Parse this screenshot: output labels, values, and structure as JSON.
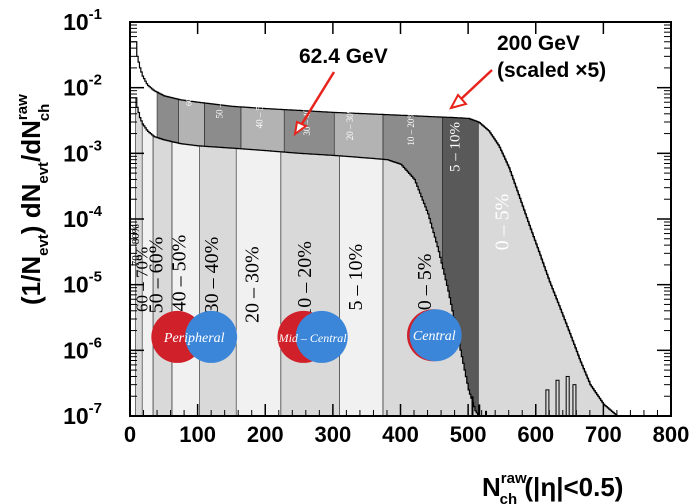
{
  "chart_data": {
    "type": "area",
    "xlabel": {
      "main": "N",
      "sup": "raw",
      "sub": "ch",
      "tail": " (|η|<0.5)"
    },
    "ylabel": {
      "pre": "(1/N",
      "sub1": "evt",
      "mid": ") dN",
      "sub2": "evt",
      "mid2": "/dN",
      "sup3": "raw",
      "sub3": "ch"
    },
    "x_ticks": [
      "0",
      "100",
      "200",
      "300",
      "400",
      "500",
      "600",
      "700",
      "800"
    ],
    "xlim": [
      0,
      800
    ],
    "ylim": [
      1e-07,
      0.1
    ],
    "y_scale": "log",
    "y_ticks": [
      {
        "value": 1e-07,
        "base": "10",
        "exp": "-7"
      },
      {
        "value": 1e-06,
        "base": "10",
        "exp": "-6"
      },
      {
        "value": 1e-05,
        "base": "10",
        "exp": "-5"
      },
      {
        "value": 0.0001,
        "base": "10",
        "exp": "-4"
      },
      {
        "value": 0.001,
        "base": "10",
        "exp": "-3"
      },
      {
        "value": 0.01,
        "base": "10",
        "exp": "-2"
      },
      {
        "value": 0.1,
        "base": "10",
        "exp": "-1"
      }
    ],
    "series": [
      {
        "name": "200 GeV (scaled ×5)",
        "x": [
          0,
          8,
          10,
          14,
          18,
          25,
          35,
          50,
          75,
          100,
          150,
          200,
          250,
          300,
          350,
          400,
          450,
          480,
          500,
          515,
          530,
          545,
          560,
          575,
          590,
          605,
          620,
          635,
          650,
          665,
          680,
          700,
          720
        ],
        "y": [
          0.05,
          0.05,
          0.03,
          0.02,
          0.015,
          0.011,
          0.009,
          0.0075,
          0.0065,
          0.006,
          0.0052,
          0.0048,
          0.0045,
          0.0042,
          0.004,
          0.0038,
          0.0036,
          0.0035,
          0.0034,
          0.003,
          0.0022,
          0.0013,
          0.0006,
          0.00022,
          8e-05,
          3e-05,
          1.1e-05,
          4.5e-06,
          1.8e-06,
          7e-07,
          3e-07,
          1.5e-07,
          1e-07
        ],
        "centrality_classes": [
          {
            "label": "0 – 5%",
            "from": 515,
            "to": 720
          },
          {
            "label": "5 – 10%",
            "from": 462,
            "to": 515
          },
          {
            "label": "10 – 20%",
            "from": 374,
            "to": 462
          },
          {
            "label": "20 – 30%",
            "from": 302,
            "to": 374
          },
          {
            "label": "30 – 40%",
            "from": 228,
            "to": 302
          },
          {
            "label": "40 – 50%",
            "from": 164,
            "to": 228
          },
          {
            "label": "50 – 60%",
            "from": 110,
            "to": 164
          },
          {
            "label": "60 – 70%",
            "from": 72,
            "to": 110
          },
          {
            "label": "70 – 80%",
            "from": 40,
            "to": 72
          }
        ]
      },
      {
        "name": "62.4 GeV",
        "x": [
          0,
          8,
          10,
          14,
          18,
          25,
          35,
          50,
          75,
          100,
          150,
          200,
          250,
          300,
          350,
          380,
          400,
          420,
          440,
          455,
          470,
          480,
          490,
          500,
          510,
          515
        ],
        "y": [
          0.007,
          0.007,
          0.005,
          0.0035,
          0.0028,
          0.0022,
          0.0018,
          0.0016,
          0.0014,
          0.0013,
          0.0012,
          0.0011,
          0.001,
          0.00093,
          0.00085,
          0.0008,
          0.00068,
          0.0004,
          0.00012,
          3.5e-05,
          8e-06,
          2.5e-06,
          8e-07,
          2.5e-07,
          1.2e-07,
          1e-07
        ],
        "centrality_classes": [
          {
            "label": "0 – 5%",
            "from": 374,
            "to": 515
          },
          {
            "label": "5 – 10%",
            "from": 310,
            "to": 374
          },
          {
            "label": "10 – 20%",
            "from": 223,
            "to": 310
          },
          {
            "label": "20 – 30%",
            "from": 157,
            "to": 223
          },
          {
            "label": "30 – 40%",
            "from": 103,
            "to": 157
          },
          {
            "label": "40 – 50%",
            "from": 62,
            "to": 103
          },
          {
            "label": "50 – 60%",
            "from": 34,
            "to": 62
          },
          {
            "label": "60 – 70%",
            "from": 18,
            "to": 34
          },
          {
            "label": "70 – 80%",
            "from": 8,
            "to": 18
          }
        ]
      }
    ],
    "annotations": [
      {
        "id": "ann-62",
        "text": "62.4 GeV"
      },
      {
        "id": "ann-200",
        "lines": [
          "200 GeV",
          "(scaled ×5)"
        ]
      }
    ],
    "overlap_icons": [
      {
        "label": "Peripheral",
        "x": 95,
        "y": 1.6e-06,
        "overlap": 0.35
      },
      {
        "label": "Mid – Central",
        "x": 270,
        "y": 1.6e-06,
        "overlap": 0.65
      },
      {
        "label": "Central",
        "x": 450,
        "y": 1.7e-06,
        "overlap": 0.95
      }
    ],
    "colors": {
      "nucleus_a": "#d0202a",
      "nucleus_b": "#3b86d8",
      "band_light": "#f1f1f1",
      "band_mid": "#d9d9d9",
      "band_dark": "#b3b3b3",
      "band_darker": "#8c8c8c",
      "band_darkest": "#595959",
      "arrow": "#e8231c"
    }
  }
}
